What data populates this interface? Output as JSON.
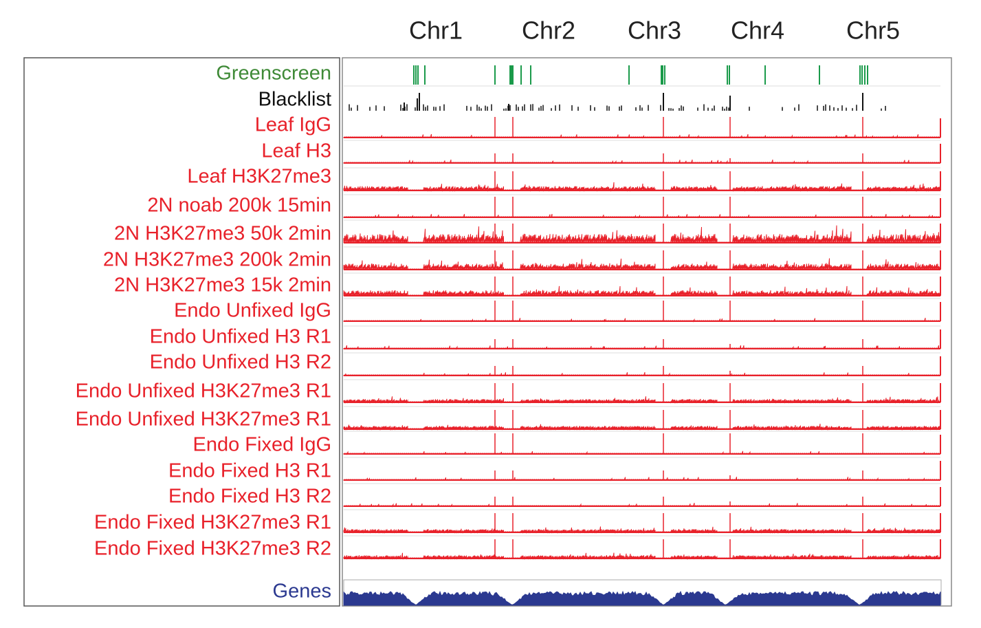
{
  "chromosomes": [
    "Chr1",
    "Chr2",
    "Chr3",
    "Chr4",
    "Chr5"
  ],
  "tracks": [
    "Greenscreen",
    "Blacklist",
    "Leaf IgG",
    "Leaf H3",
    "Leaf H3K27me3",
    "2N noab 200k 15min",
    "2N H3K27me3 50k 2min",
    "2N H3K27me3 200k 2min",
    "2N H3K27me3 15k 2min",
    "Endo Unfixed IgG",
    "Endo Unfixed H3 R1",
    "Endo Unfixed H3 R2",
    "Endo Unfixed H3K27me3 R1",
    "Endo Unfixed H3K27me3 R1",
    "Endo Fixed IgG",
    "Endo Fixed H3 R1",
    "Endo Fixed H3 R2",
    "Endo Fixed H3K27me3 R1",
    "Endo Fixed H3K27me3 R2",
    "Genes"
  ]
}
